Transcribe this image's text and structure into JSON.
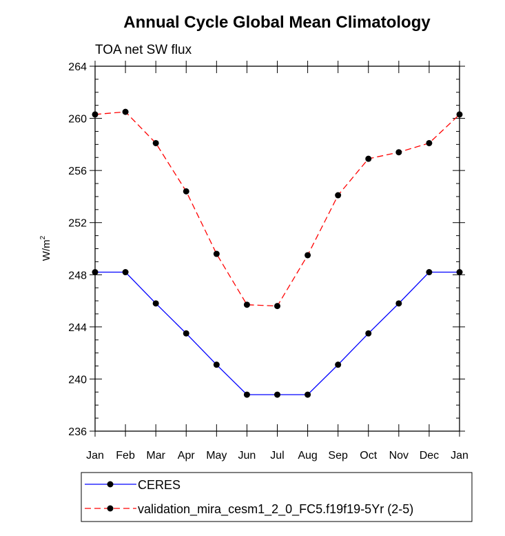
{
  "chart_data": {
    "type": "line",
    "title": "Annual Cycle Global Mean Climatology",
    "subtitle": "TOA net SW flux",
    "ylabel": "W/m",
    "ylabel_sup": "2",
    "xlabel": "",
    "ylim": [
      236,
      264
    ],
    "yticks": [
      "236",
      "240",
      "244",
      "248",
      "252",
      "256",
      "260",
      "264"
    ],
    "categories": [
      "Jan",
      "Feb",
      "Mar",
      "Apr",
      "May",
      "Jun",
      "Jul",
      "Aug",
      "Sep",
      "Oct",
      "Nov",
      "Dec",
      "Jan"
    ],
    "series": [
      {
        "name": "CERES",
        "color": "#0000ff",
        "dash": "solid",
        "values": [
          248.2,
          248.2,
          245.8,
          243.5,
          241.1,
          238.8,
          238.8,
          238.8,
          241.1,
          243.5,
          245.8,
          248.2,
          248.2
        ]
      },
      {
        "name": "validation_mira_cesm1_2_0_FC5.f19f19-5Yr (2-5)",
        "color": "#ff0000",
        "dash": "dashed",
        "values": [
          260.3,
          260.5,
          258.1,
          254.4,
          249.6,
          245.7,
          245.6,
          249.5,
          254.1,
          256.9,
          257.4,
          258.1,
          260.3
        ]
      }
    ],
    "grid": false,
    "legend_position": "bottom"
  }
}
